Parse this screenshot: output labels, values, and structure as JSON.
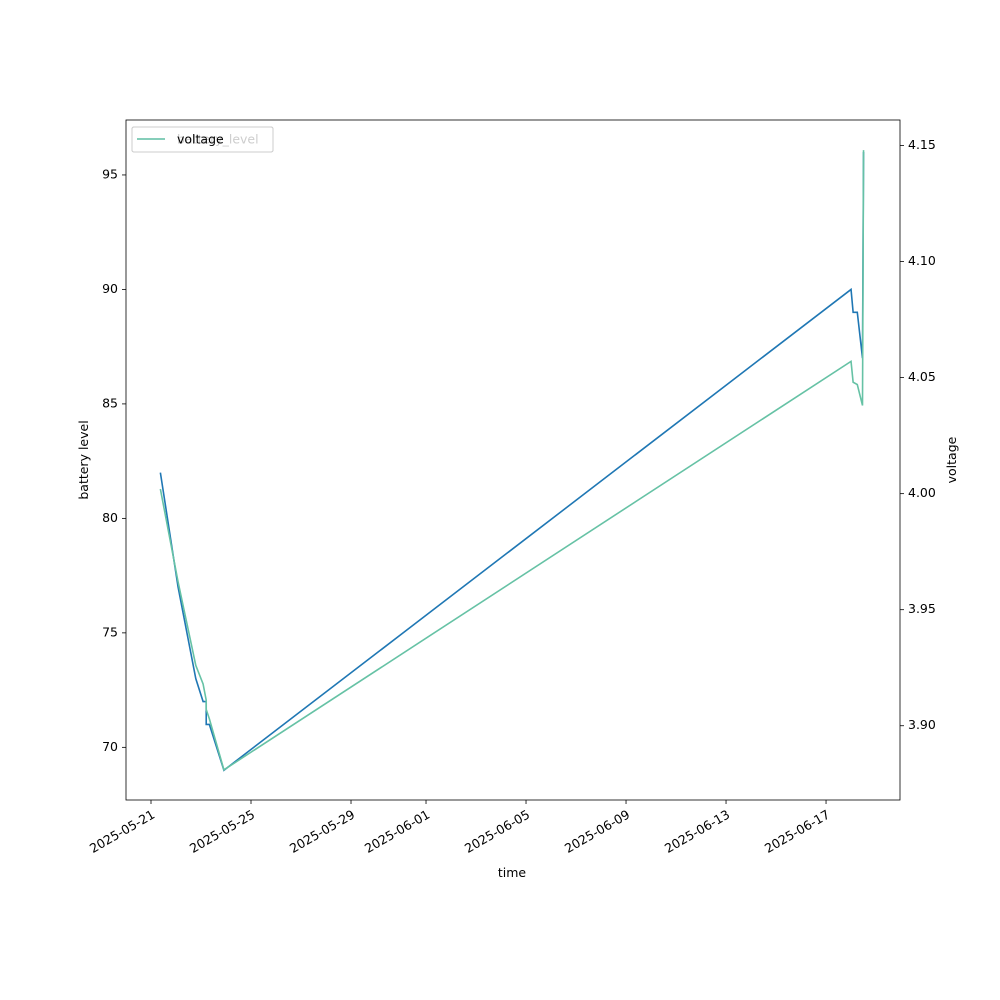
{
  "chart_data": {
    "type": "line",
    "xlabel": "time",
    "ylabel": "battery level",
    "y2label": "voltage",
    "x": [
      "2025-05-21T09:00",
      "2025-05-22T02:00",
      "2025-05-22T19:00",
      "2025-05-23T02:00",
      "2025-05-23T05:00",
      "2025-05-23T05:00",
      "2025-05-23T08:00",
      "2025-05-23T22:00",
      "2025-06-18T00:00",
      "2025-06-18T02:00",
      "2025-06-18T06:00",
      "2025-06-18T11:00",
      "2025-06-18T12:00"
    ],
    "series": [
      {
        "name": "battery_level",
        "color": "#1f77b4",
        "values": [
          82,
          77,
          73,
          72,
          72,
          71,
          71,
          69,
          90,
          89,
          89,
          87,
          96
        ]
      },
      {
        "name": "voltage",
        "color": "#66c2a5",
        "axis": "y2",
        "values": [
          4.002,
          3.962,
          3.926,
          3.918,
          3.911,
          3.907,
          3.903,
          3.881,
          4.057,
          4.048,
          4.047,
          4.038,
          4.148
        ]
      }
    ],
    "xlim": [
      "2025-05-20T00:00",
      "2025-06-19T23:00"
    ],
    "xticks": [
      "2025-05-21",
      "2025-05-25",
      "2025-05-29",
      "2025-06-01",
      "2025-06-05",
      "2025-06-09",
      "2025-06-13",
      "2025-06-17"
    ],
    "ylim": [
      67.7,
      97.4
    ],
    "yticks": [
      70,
      75,
      80,
      85,
      90,
      95
    ],
    "y2lim": [
      3.868,
      4.161
    ],
    "y2ticks": [
      {
        "value": 3.9,
        "label": "3.90"
      },
      3.95,
      {
        "value": 4.0,
        "label": "4.00"
      },
      4.05,
      {
        "value": 4.1,
        "label": "4.10"
      },
      4.15
    ],
    "legend": "upper left",
    "grid": false
  }
}
